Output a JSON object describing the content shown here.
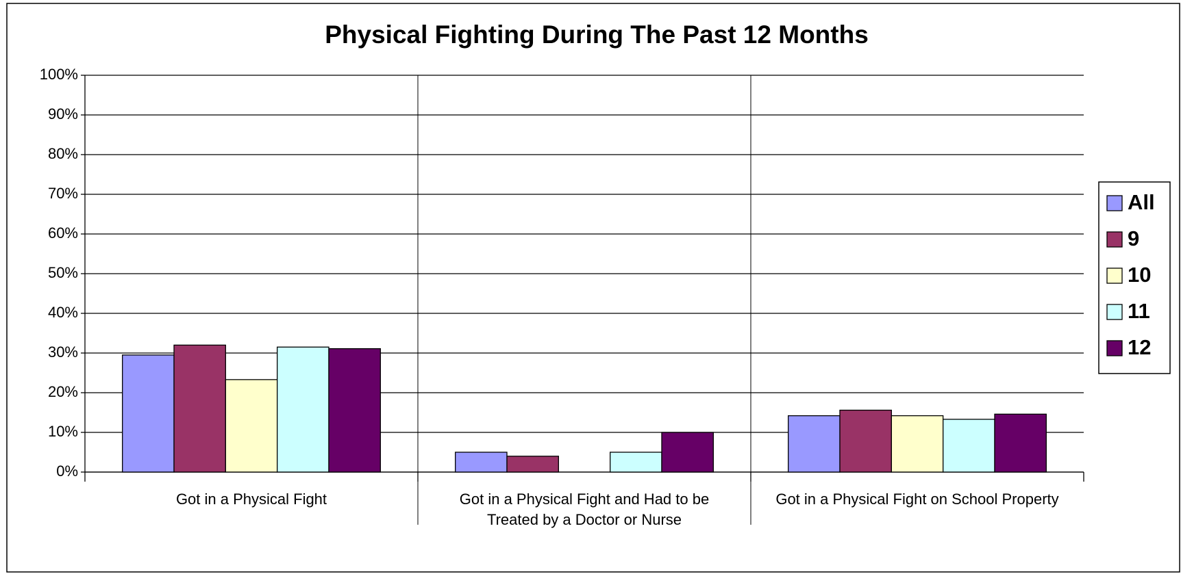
{
  "chart_data": {
    "type": "bar",
    "title": "Physical Fighting During The Past 12 Months",
    "categories": [
      "Got in a Physical Fight",
      "Got in a Physical Fight and Had to be Treated by a Doctor or Nurse",
      "Got in a Physical Fight on School Property"
    ],
    "series": [
      {
        "name": "All",
        "color": "#9999ff",
        "values": [
          29.5,
          5,
          14.2
        ]
      },
      {
        "name": "9",
        "color": "#993366",
        "values": [
          32,
          4,
          15.6
        ]
      },
      {
        "name": "10",
        "color": "#ffffcc",
        "values": [
          23.3,
          null,
          14.2
        ]
      },
      {
        "name": "11",
        "color": "#ccffff",
        "values": [
          31.5,
          5,
          13.3
        ]
      },
      {
        "name": "12",
        "color": "#660066",
        "values": [
          31.1,
          10,
          14.6
        ]
      }
    ],
    "ylim": [
      0,
      100
    ],
    "yticks": [
      {
        "value": 0,
        "label": "0%"
      },
      {
        "value": 10,
        "label": "10%"
      },
      {
        "value": 20,
        "label": "20%"
      },
      {
        "value": 30,
        "label": "30%"
      },
      {
        "value": 40,
        "label": "40%"
      },
      {
        "value": 50,
        "label": "50%"
      },
      {
        "value": 60,
        "label": "60%"
      },
      {
        "value": 70,
        "label": "70%"
      },
      {
        "value": 80,
        "label": "80%"
      },
      {
        "value": 90,
        "label": "90%"
      },
      {
        "value": 100,
        "label": "100%"
      }
    ],
    "grid": true,
    "legend": "right"
  }
}
